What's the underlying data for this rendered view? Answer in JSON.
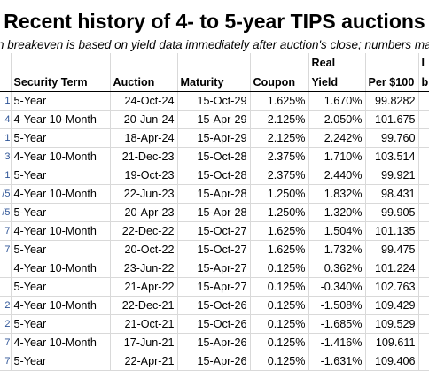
{
  "title": "Recent history of 4- to 5-year TIPS auctions",
  "subtitle": "n breakeven is based on yield data immediately after auction's close; numbers ma",
  "headers_top": [
    "",
    "",
    "",
    "",
    "",
    "Real",
    "",
    "I"
  ],
  "headers_bottom": [
    "",
    "Security Term",
    "Auction",
    "Maturity",
    "Coupon",
    "Yield",
    "Per $100",
    "b"
  ],
  "rows": [
    {
      "mark": "1",
      "term": "5-Year",
      "auction": "24-Oct-24",
      "maturity": "15-Oct-29",
      "coupon": "1.625%",
      "yield": "1.670%",
      "price": "99.8282"
    },
    {
      "mark": "4",
      "term": "4-Year 10-Month",
      "auction": "20-Jun-24",
      "maturity": "15-Apr-29",
      "coupon": "2.125%",
      "yield": "2.050%",
      "price": "101.675"
    },
    {
      "mark": "1",
      "term": "5-Year",
      "auction": "18-Apr-24",
      "maturity": "15-Apr-29",
      "coupon": "2.125%",
      "yield": "2.242%",
      "price": "99.760"
    },
    {
      "mark": "3",
      "term": "4-Year 10-Month",
      "auction": "21-Dec-23",
      "maturity": "15-Oct-28",
      "coupon": "2.375%",
      "yield": "1.710%",
      "price": "103.514"
    },
    {
      "mark": "1",
      "term": "5-Year",
      "auction": "19-Oct-23",
      "maturity": "15-Oct-28",
      "coupon": "2.375%",
      "yield": "2.440%",
      "price": "99.921"
    },
    {
      "mark": "/5",
      "term": "4-Year 10-Month",
      "auction": "22-Jun-23",
      "maturity": "15-Apr-28",
      "coupon": "1.250%",
      "yield": "1.832%",
      "price": "98.431"
    },
    {
      "mark": "/5",
      "term": "5-Year",
      "auction": "20-Apr-23",
      "maturity": "15-Apr-28",
      "coupon": "1.250%",
      "yield": "1.320%",
      "price": "99.905"
    },
    {
      "mark": "7",
      "term": "4-Year 10-Month",
      "auction": "22-Dec-22",
      "maturity": "15-Oct-27",
      "coupon": "1.625%",
      "yield": "1.504%",
      "price": "101.135"
    },
    {
      "mark": "7",
      "term": "5-Year",
      "auction": "20-Oct-22",
      "maturity": "15-Oct-27",
      "coupon": "1.625%",
      "yield": "1.732%",
      "price": "99.475"
    },
    {
      "mark": "",
      "term": "4-Year 10-Month",
      "auction": "23-Jun-22",
      "maturity": "15-Apr-27",
      "coupon": "0.125%",
      "yield": "0.362%",
      "price": "101.224"
    },
    {
      "mark": "",
      "term": "5-Year",
      "auction": "21-Apr-22",
      "maturity": "15-Apr-27",
      "coupon": "0.125%",
      "yield": "-0.340%",
      "price": "102.763"
    },
    {
      "mark": "2",
      "term": "4-Year 10-Month",
      "auction": "22-Dec-21",
      "maturity": "15-Oct-26",
      "coupon": "0.125%",
      "yield": "-1.508%",
      "price": "109.429"
    },
    {
      "mark": "2",
      "term": "5-Year",
      "auction": "21-Oct-21",
      "maturity": "15-Oct-26",
      "coupon": "0.125%",
      "yield": "-1.685%",
      "price": "109.529"
    },
    {
      "mark": "7",
      "term": "4-Year 10-Month",
      "auction": "17-Jun-21",
      "maturity": "15-Apr-26",
      "coupon": "0.125%",
      "yield": "-1.416%",
      "price": "109.611"
    },
    {
      "mark": "7",
      "term": "5-Year",
      "auction": "22-Apr-21",
      "maturity": "15-Apr-26",
      "coupon": "0.125%",
      "yield": "-1.631%",
      "price": "109.406"
    }
  ]
}
